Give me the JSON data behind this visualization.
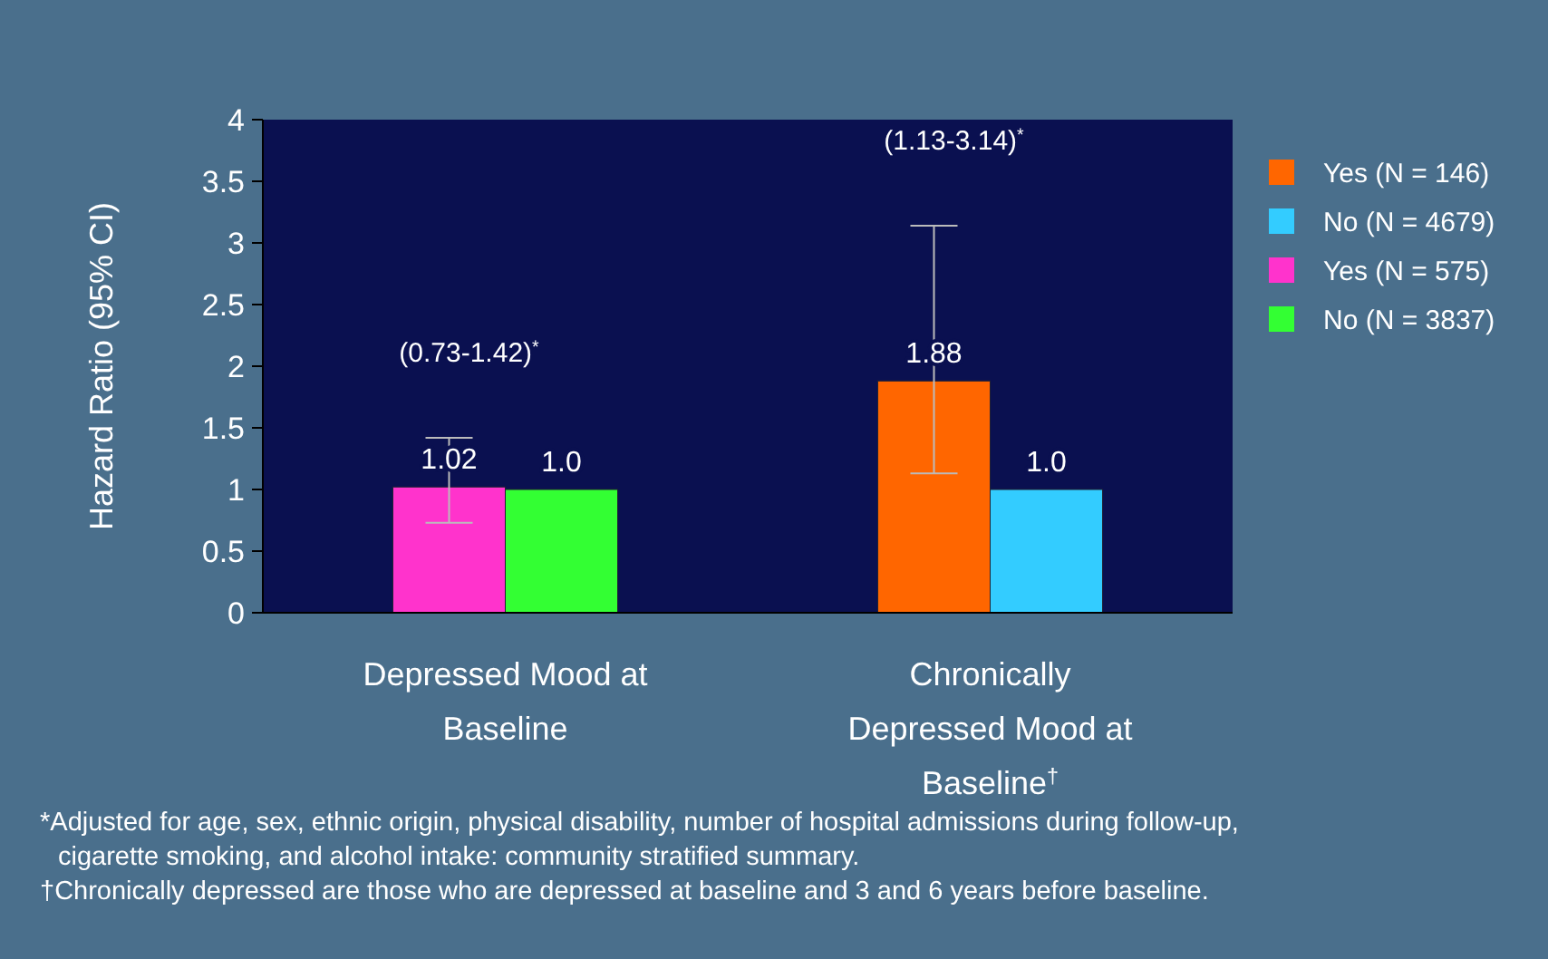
{
  "chart_data": {
    "type": "bar",
    "ylabel": "Hazard Ratio (95% CI)",
    "categories": [
      "Depressed Mood at Baseline",
      "Chronically Depressed Mood at Baseline$^{†}$"
    ],
    "series": [
      {
        "name": "Yes (N = 146)",
        "color": "#ff6600",
        "values": [
          null,
          1.88
        ],
        "errors": [
          null,
          [
            1.13,
            3.14
          ]
        ],
        "value_labels": [
          null,
          "1.88"
        ]
      },
      {
        "name": "No (N = 4679)",
        "color": "#33ccff",
        "values": [
          null,
          1.0
        ],
        "value_labels": [
          null,
          "1.0"
        ]
      },
      {
        "name": "Yes (N = 575)",
        "color": "#ff33cc",
        "values": [
          1.02,
          null
        ],
        "errors": [
          [
            0.73,
            1.42
          ],
          null
        ],
        "value_labels": [
          "1.02",
          null
        ]
      },
      {
        "name": "No (N = 3837)",
        "color": "#33ff33",
        "values": [
          1.0,
          null
        ],
        "value_labels": [
          "1.0",
          null
        ]
      }
    ],
    "ylim": [
      0,
      4
    ],
    "yticks": [
      0,
      0.5,
      1,
      1.5,
      2,
      2.5,
      3,
      3.5,
      4
    ],
    "grid": false,
    "legend": "top right",
    "annotations": [
      "(0.73-1.42)$^{*}$",
      "(1.13-3.14)$^{*}$",
      "*Adjusted for age, sex, ethnic origin, physical disability, number of hospital admissions during follow-up, cigarette smoking, and alcohol intake: community stratified summary.",
      "†Chronically depressed are those who are depressed at baseline and 3 and 6 years before baseline."
    ]
  }
}
